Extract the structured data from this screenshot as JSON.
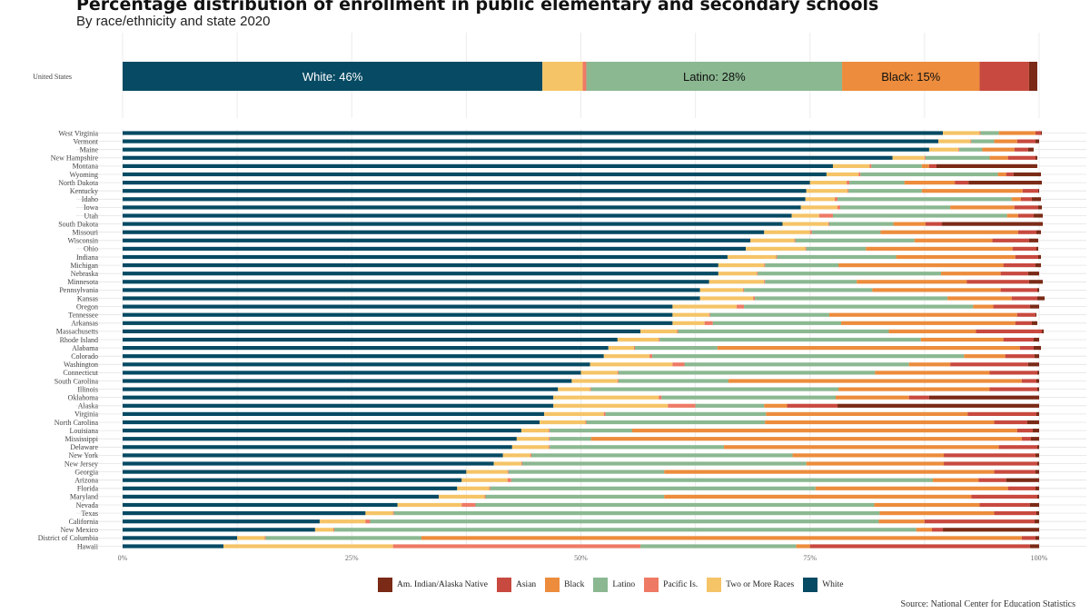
{
  "header": {
    "title": "Percentage distribution of enrollment in public elementary and secondary schools",
    "subtitle": "By race/ethnicity and state 2020"
  },
  "source": "Source: National Center for Education Statistics",
  "colors": {
    "Am. Indian/Alaska Native": "#7a2a16",
    "Asian": "#c8493f",
    "Black": "#ec8c3c",
    "Latino": "#8bb891",
    "Pacific Is.": "#ee7a65",
    "Two or More Races": "#f5c467",
    "White": "#064a63"
  },
  "chart_data": {
    "type": "bar",
    "orientation": "horizontal",
    "stacked": true,
    "xlim": [
      0,
      100
    ],
    "x_ticks": [
      "0%",
      "25%",
      "50%",
      "75%",
      "100%"
    ],
    "grid": true,
    "legend_position": "bottom",
    "series_order": [
      "White",
      "Two or More Races",
      "Pacific Is.",
      "Latino",
      "Black",
      "Asian",
      "Am. Indian/Alaska Native"
    ],
    "legend_order": [
      "Am. Indian/Alaska Native",
      "Asian",
      "Black",
      "Latino",
      "Pacific Is.",
      "Two or More Races",
      "White"
    ],
    "us": {
      "label": "United States",
      "values": [
        45.8,
        4.4,
        0.4,
        27.9,
        15.0,
        5.4,
        0.9
      ],
      "annotations": [
        {
          "series": "White",
          "text": "White: 46%"
        },
        {
          "series": "Latino",
          "text": "Latino: 28%"
        },
        {
          "series": "Black",
          "text": "Black: 15%"
        }
      ]
    },
    "states": [
      {
        "label": "West Virginia",
        "values": [
          89.5,
          4.0,
          0.1,
          2.0,
          4.0,
          0.6,
          0.1
        ]
      },
      {
        "label": "Vermont",
        "values": [
          89.0,
          3.5,
          0.1,
          2.5,
          2.5,
          2.0,
          0.4
        ]
      },
      {
        "label": "Maine",
        "values": [
          88.0,
          3.2,
          0.1,
          2.5,
          3.5,
          1.5,
          0.6
        ]
      },
      {
        "label": "New Hampshire",
        "values": [
          84.0,
          3.5,
          0.1,
          7.0,
          2.0,
          3.0,
          0.2
        ]
      },
      {
        "label": "Montana",
        "values": [
          77.5,
          4.0,
          0.2,
          5.5,
          0.8,
          0.8,
          11.0
        ]
      },
      {
        "label": "Wyoming",
        "values": [
          76.8,
          3.5,
          0.2,
          15.0,
          0.9,
          0.8,
          3.0
        ]
      },
      {
        "label": "North Dakota",
        "values": [
          75.0,
          4.0,
          0.3,
          6.0,
          5.5,
          1.5,
          8.0
        ]
      },
      {
        "label": "Kentucky",
        "values": [
          74.6,
          4.5,
          0.1,
          8.0,
          11.0,
          1.7,
          0.1
        ]
      },
      {
        "label": "Idaho",
        "values": [
          74.5,
          3.2,
          0.3,
          19.0,
          1.0,
          1.2,
          1.0
        ]
      },
      {
        "label": "Iowa",
        "values": [
          74.0,
          4.0,
          0.3,
          12.0,
          7.0,
          2.6,
          0.4
        ]
      },
      {
        "label": "Utah",
        "values": [
          73.0,
          3.0,
          1.5,
          19.0,
          1.2,
          1.7,
          1.0
        ]
      },
      {
        "label": "South Dakota",
        "values": [
          72.0,
          5.0,
          0.1,
          7.0,
          3.5,
          1.8,
          11.0
        ]
      },
      {
        "label": "Missouri",
        "values": [
          70.0,
          5.0,
          0.2,
          7.5,
          15.0,
          2.0,
          0.5
        ]
      },
      {
        "label": "Wisconsin",
        "values": [
          68.5,
          4.8,
          0.1,
          13.0,
          8.5,
          4.0,
          1.0
        ]
      },
      {
        "label": "Ohio",
        "values": [
          68.0,
          6.5,
          0.1,
          6.5,
          16.0,
          2.6,
          0.2
        ]
      },
      {
        "label": "Indiana",
        "values": [
          66.0,
          5.3,
          0.1,
          13.0,
          13.0,
          2.5,
          0.3
        ]
      },
      {
        "label": "Michigan",
        "values": [
          65.0,
          5.0,
          0.1,
          8.0,
          18.0,
          3.5,
          0.6
        ]
      },
      {
        "label": "Nebraska",
        "values": [
          65.0,
          4.2,
          0.1,
          20.0,
          6.5,
          3.0,
          1.2
        ]
      },
      {
        "label": "Minnesota",
        "values": [
          64.0,
          6.0,
          0.1,
          10.0,
          12.0,
          6.8,
          1.5
        ]
      },
      {
        "label": "Pennsylvania",
        "values": [
          63.0,
          4.7,
          0.1,
          14.0,
          14.0,
          4.0,
          0.2
        ]
      },
      {
        "label": "Kansas",
        "values": [
          63.0,
          5.8,
          0.2,
          21.0,
          7.0,
          2.8,
          0.8
        ]
      },
      {
        "label": "Oregon",
        "values": [
          60.0,
          7.0,
          0.8,
          25.0,
          2.2,
          4.0,
          1.0
        ]
      },
      {
        "label": "Tennessee",
        "values": [
          60.0,
          4.0,
          0.1,
          13.0,
          20.5,
          2.0,
          0.1
        ]
      },
      {
        "label": "Arkansas",
        "values": [
          60.0,
          3.5,
          0.9,
          14.0,
          19.0,
          1.8,
          0.6
        ]
      },
      {
        "label": "Massachusetts",
        "values": [
          56.5,
          4.0,
          0.1,
          23.0,
          9.5,
          7.2,
          0.2
        ]
      },
      {
        "label": "Rhode Island",
        "values": [
          54.0,
          4.5,
          0.1,
          28.5,
          9.0,
          3.3,
          0.6
        ]
      },
      {
        "label": "Alabama",
        "values": [
          53.0,
          2.8,
          0.1,
          9.0,
          33.0,
          1.5,
          0.8
        ]
      },
      {
        "label": "Colorado",
        "values": [
          52.5,
          5.0,
          0.3,
          34.0,
          4.5,
          3.2,
          0.5
        ]
      },
      {
        "label": "Washington",
        "values": [
          51.0,
          9.0,
          1.3,
          24.5,
          4.5,
          8.5,
          1.2
        ]
      },
      {
        "label": "Connecticut",
        "values": [
          50.0,
          4.0,
          0.1,
          28.0,
          12.5,
          5.2,
          0.2
        ]
      },
      {
        "label": "South Carolina",
        "values": [
          49.0,
          5.0,
          0.1,
          12.0,
          32.0,
          1.6,
          0.3
        ]
      },
      {
        "label": "Illinois",
        "values": [
          47.5,
          3.5,
          0.1,
          27.0,
          16.5,
          5.2,
          0.2
        ]
      },
      {
        "label": "Oklahoma",
        "values": [
          47.0,
          11.5,
          0.3,
          19.0,
          8.0,
          2.2,
          12.0
        ]
      },
      {
        "label": "Alaska",
        "values": [
          47.0,
          12.5,
          3.0,
          7.5,
          2.5,
          5.5,
          22.0
        ]
      },
      {
        "label": "Virginia",
        "values": [
          46.0,
          6.5,
          0.2,
          17.5,
          22.0,
          7.5,
          0.3
        ]
      },
      {
        "label": "North Carolina",
        "values": [
          45.5,
          5.0,
          0.1,
          19.5,
          25.0,
          3.6,
          1.3
        ]
      },
      {
        "label": "Louisiana",
        "values": [
          43.5,
          3.0,
          0.1,
          9.0,
          42.0,
          1.7,
          0.7
        ]
      },
      {
        "label": "Mississippi",
        "values": [
          43.0,
          3.5,
          0.1,
          4.5,
          47.0,
          1.0,
          0.9
        ]
      },
      {
        "label": "Delaware",
        "values": [
          42.5,
          4.0,
          0.1,
          19.0,
          30.0,
          4.2,
          0.2
        ]
      },
      {
        "label": "New York",
        "values": [
          41.5,
          3.0,
          0.1,
          28.5,
          16.5,
          10.0,
          0.4
        ]
      },
      {
        "label": "New Jersey",
        "values": [
          40.5,
          3.0,
          0.1,
          31.0,
          15.0,
          10.2,
          0.2
        ]
      },
      {
        "label": "Georgia",
        "values": [
          37.5,
          4.5,
          0.1,
          17.0,
          36.0,
          4.5,
          0.4
        ]
      },
      {
        "label": "Arizona",
        "values": [
          37.0,
          5.0,
          0.4,
          46.0,
          5.0,
          3.0,
          3.6
        ]
      },
      {
        "label": "Florida",
        "values": [
          36.5,
          3.5,
          0.1,
          35.5,
          21.0,
          3.0,
          0.4
        ]
      },
      {
        "label": "Maryland",
        "values": [
          34.5,
          5.0,
          0.1,
          19.5,
          33.5,
          7.2,
          0.2
        ]
      },
      {
        "label": "Nevada",
        "values": [
          30.0,
          7.0,
          1.5,
          43.5,
          11.5,
          5.5,
          1.0
        ]
      },
      {
        "label": "Texas",
        "values": [
          26.5,
          3.0,
          0.1,
          53.0,
          12.5,
          4.6,
          0.3
        ]
      },
      {
        "label": "California",
        "values": [
          21.5,
          5.0,
          0.5,
          55.5,
          5.0,
          12.0,
          0.5
        ]
      },
      {
        "label": "New Mexico",
        "values": [
          21.0,
          2.0,
          0.1,
          63.5,
          1.7,
          1.2,
          10.5
        ]
      },
      {
        "label": "District of Columbia",
        "values": [
          12.5,
          3.0,
          0.1,
          17.0,
          65.5,
          1.5,
          0.4
        ]
      },
      {
        "label": "Hawaii",
        "values": [
          11.0,
          18.5,
          27.0,
          17.0,
          1.5,
          24.0,
          1.0
        ]
      }
    ]
  }
}
